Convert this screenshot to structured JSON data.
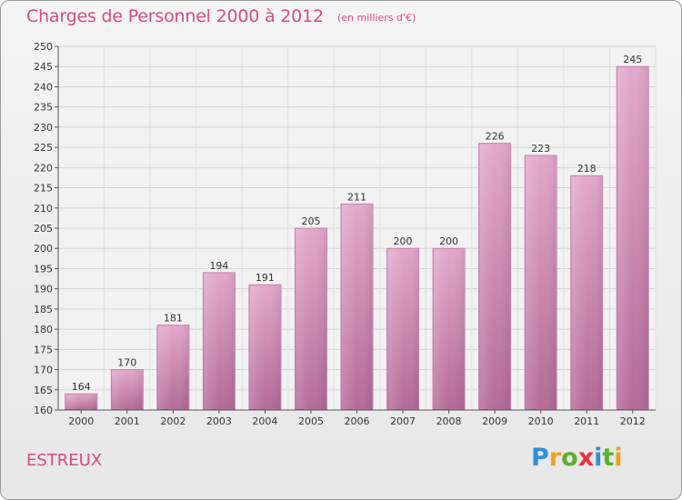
{
  "page": {
    "place": "ESTREUX",
    "logo": {
      "letters": [
        "P",
        "r",
        "o",
        "x",
        "i",
        "t",
        "i"
      ],
      "colors": [
        "#2f8fd6",
        "#f0a020",
        "#5bb030",
        "#e8323c",
        "#2f8fd6",
        "#5bb030",
        "#f0a020"
      ]
    }
  },
  "chart_data": {
    "type": "bar",
    "title": "Charges de Personnel 2000 à 2012",
    "subtitle": "(en milliers d'€)",
    "categories": [
      "2000",
      "2001",
      "2002",
      "2003",
      "2004",
      "2005",
      "2006",
      "2007",
      "2008",
      "2009",
      "2010",
      "2011",
      "2012"
    ],
    "values": [
      164,
      170,
      181,
      194,
      191,
      205,
      211,
      200,
      200,
      226,
      223,
      218,
      245
    ],
    "ylim": [
      160,
      250
    ],
    "yticks": [
      160,
      165,
      170,
      175,
      180,
      185,
      190,
      195,
      200,
      205,
      210,
      215,
      220,
      225,
      230,
      235,
      240,
      245,
      250
    ],
    "grid": true,
    "bar_color": "#d98ab8"
  }
}
